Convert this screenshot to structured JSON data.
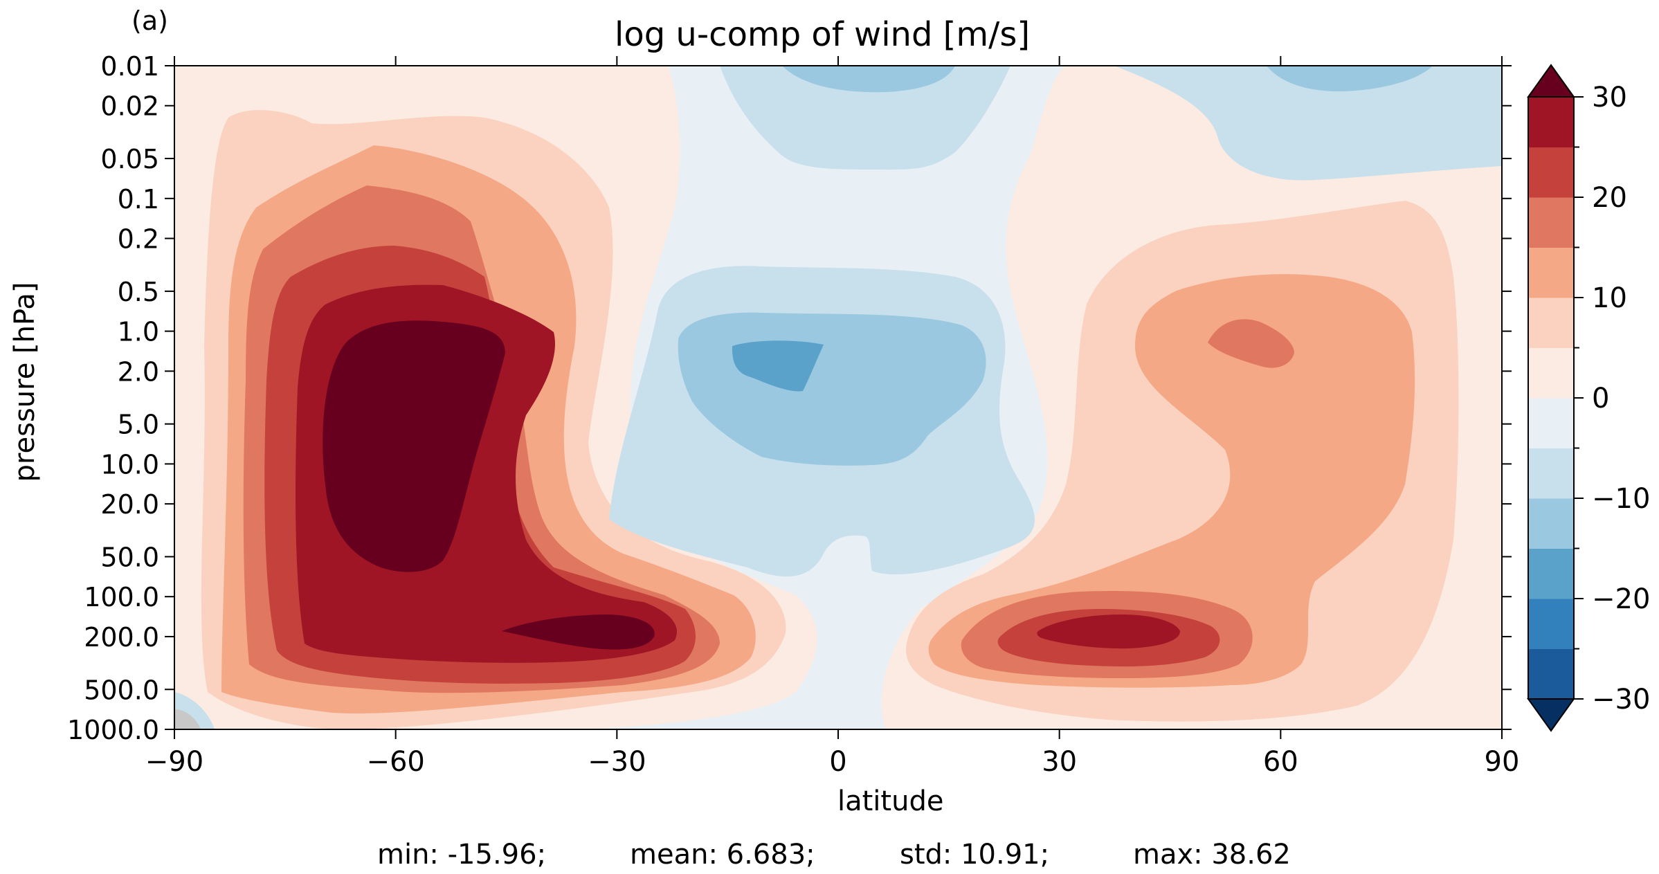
{
  "panel_label": "(a)",
  "chart_data": {
    "type": "contourf",
    "title": "log u-comp of wind [m/s]",
    "xlabel": "latitude",
    "ylabel": "pressure [hPa]",
    "xlim": [
      -90,
      90
    ],
    "x_ticks": [
      -90,
      -60,
      -30,
      0,
      30,
      60,
      90
    ],
    "x_tick_labels": [
      "−90",
      "−60",
      "−30",
      "0",
      "30",
      "60",
      "90"
    ],
    "ylim": [
      1000.0,
      0.01
    ],
    "y_scale": "log",
    "y_ticks": [
      0.01,
      0.02,
      0.05,
      0.1,
      0.2,
      0.5,
      1.0,
      2.0,
      5.0,
      10.0,
      20.0,
      50.0,
      100.0,
      200.0,
      500.0,
      1000.0
    ],
    "y_tick_labels": [
      "0.01",
      "0.02",
      "0.05",
      "0.1",
      "0.2",
      "0.5",
      "1.0",
      "2.0",
      "5.0",
      "10.0",
      "20.0",
      "50.0",
      "100.0",
      "200.0",
      "500.0",
      "1000.0"
    ],
    "levels": [
      -30,
      -25,
      -20,
      -15,
      -10,
      -5,
      0,
      5,
      10,
      15,
      20,
      25,
      30
    ],
    "colors": [
      "#053061",
      "#1b5a9b",
      "#3381bc",
      "#5ba2cb",
      "#9ac8e0",
      "#c8dfec",
      "#e8f0f5",
      "#fbebe3",
      "#fad2bf",
      "#f5a886",
      "#e07760",
      "#c5413c",
      "#a01526",
      "#67001f"
    ],
    "colorbar": {
      "extend": "both",
      "ticks": [
        30,
        20,
        10,
        0,
        -10,
        -20,
        -30
      ],
      "tick_labels": [
        "30",
        "20",
        "10",
        "0",
        "−10",
        "−20",
        "−30"
      ]
    },
    "features": [
      {
        "name": "southern stratospheric westerly jet",
        "lat": -55,
        "pressure_hPa": 5.0,
        "value": 38.62
      },
      {
        "name": "southern tropospheric jet",
        "lat": -35,
        "pressure_hPa": 200.0,
        "value": 30
      },
      {
        "name": "northern tropospheric jet",
        "lat": 35,
        "pressure_hPa": 200.0,
        "value": 25
      },
      {
        "name": "northern stratospheric westerly",
        "lat": 57,
        "pressure_hPa": 1.5,
        "value": 15
      },
      {
        "name": "tropical stratospheric easterly",
        "lat": -10,
        "pressure_hPa": 1.5,
        "value": -15.96
      },
      {
        "name": "mesospheric easterly (tropics)",
        "lat": 5,
        "pressure_hPa": 0.02,
        "value": -10
      },
      {
        "name": "mesospheric easterly (north)",
        "lat": 70,
        "pressure_hPa": 0.02,
        "value": -10
      }
    ]
  },
  "stats": {
    "min": "min: -15.96;",
    "mean": "mean: 6.683;",
    "std": "std: 10.91;",
    "max": "max: 38.62"
  }
}
